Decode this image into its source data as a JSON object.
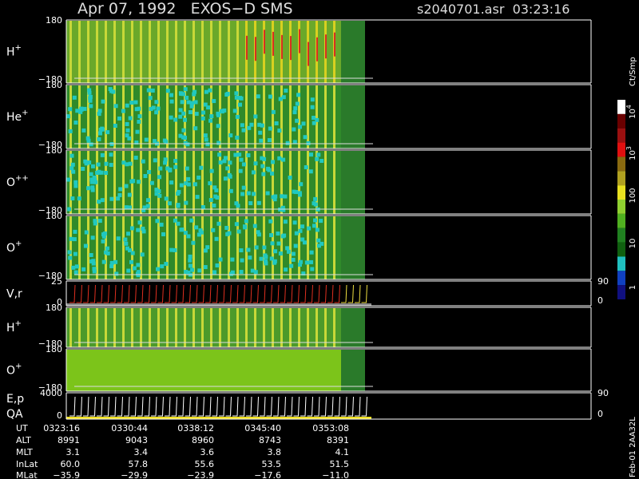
{
  "header": {
    "title": "Apr 07, 1992   EXOS−D SMS",
    "file_time": "s2040701.asr  03:23:16"
  },
  "panels": [
    {
      "label": "H",
      "sup": "+",
      "ytop": "180",
      "ybottom": "−180"
    },
    {
      "label": "He",
      "sup": "+",
      "ytop": "180",
      "ybottom": "−180"
    },
    {
      "label": "O",
      "sup": "++",
      "ytop": "180",
      "ybottom": "−180"
    },
    {
      "label": "O",
      "sup": "+",
      "ytop": "180",
      "ybottom": "−180"
    },
    {
      "label": "V,r",
      "ytop": "25",
      "ybottom": "0",
      "rtop": "90",
      "rbottom": "0"
    },
    {
      "label": "H",
      "sup": "+",
      "ytop": "180",
      "ybottom": "−180"
    },
    {
      "label": "O",
      "sup": "+",
      "ytop": "180",
      "ybottom": "−180"
    },
    {
      "label": "E,p",
      "label2": "QA",
      "ytop": "4000",
      "ybottom": "0",
      "rtop": "90",
      "rbottom": "0"
    }
  ],
  "colorbar": {
    "unit": "Ct/Smp",
    "labels": [
      {
        "base": "10",
        "exp": "4"
      },
      {
        "base": "10",
        "exp": "3"
      },
      {
        "base": "100"
      },
      {
        "base": "10"
      },
      {
        "base": "1"
      }
    ]
  },
  "footer": {
    "rows": [
      [
        "UT",
        "0323:16",
        "0330:44",
        "0338:12",
        "0345:40",
        "0353:08"
      ],
      [
        "ALT",
        "8991",
        "9043",
        "8960",
        "8743",
        "8391"
      ],
      [
        "MLT",
        "3.1",
        "3.4",
        "3.6",
        "3.8",
        "4.1"
      ],
      [
        "InLat",
        "60.0",
        "57.8",
        "55.6",
        "53.5",
        "51.5"
      ],
      [
        "MLat",
        "−35.9",
        "−29.9",
        "−23.9",
        "−17.6",
        "−11.0"
      ]
    ]
  },
  "side_note": "Feb-01 2AA32L"
}
